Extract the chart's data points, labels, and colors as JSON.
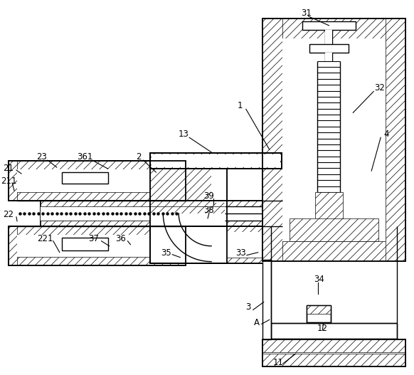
{
  "bg_color": "#ffffff",
  "line_color": "#000000",
  "figsize": [
    5.82,
    5.27
  ],
  "dpi": 100,
  "labels": [
    [
      "31",
      430,
      18
    ],
    [
      "1",
      337,
      148
    ],
    [
      "4",
      543,
      188
    ],
    [
      "32",
      533,
      123
    ],
    [
      "13",
      257,
      188
    ],
    [
      "2",
      193,
      220
    ],
    [
      "23",
      57,
      220
    ],
    [
      "361",
      118,
      220
    ],
    [
      "21",
      10,
      236
    ],
    [
      "211",
      10,
      254
    ],
    [
      "22",
      10,
      302
    ],
    [
      "221",
      62,
      336
    ],
    [
      "37",
      130,
      336
    ],
    [
      "36",
      168,
      336
    ],
    [
      "35",
      232,
      356
    ],
    [
      "38",
      293,
      296
    ],
    [
      "39",
      293,
      276
    ],
    [
      "33",
      338,
      356
    ],
    [
      "3",
      348,
      432
    ],
    [
      "A",
      360,
      454
    ],
    [
      "34",
      448,
      393
    ],
    [
      "12",
      453,
      462
    ],
    [
      "11",
      390,
      510
    ]
  ],
  "label_lines": [
    [
      "31",
      430,
      22,
      462,
      35
    ],
    [
      "1",
      342,
      153,
      378,
      210
    ],
    [
      "4",
      538,
      193,
      522,
      240
    ],
    [
      "32",
      528,
      128,
      496,
      158
    ],
    [
      "13",
      262,
      193,
      298,
      215
    ],
    [
      "2",
      197,
      225,
      218,
      242
    ],
    [
      "23",
      62,
      225,
      78,
      235
    ],
    [
      "361",
      125,
      225,
      150,
      237
    ],
    [
      "21",
      18,
      239,
      28,
      244
    ],
    [
      "211",
      18,
      257,
      18,
      268
    ],
    [
      "22",
      18,
      305,
      22,
      311
    ],
    [
      "221",
      70,
      339,
      82,
      355
    ],
    [
      "37",
      138,
      339,
      152,
      346
    ],
    [
      "36",
      175,
      339,
      182,
      344
    ],
    [
      "35",
      238,
      358,
      252,
      362
    ],
    [
      "38",
      296,
      299,
      291,
      307
    ],
    [
      "39",
      296,
      279,
      299,
      288
    ],
    [
      "33",
      343,
      359,
      362,
      355
    ],
    [
      "3",
      352,
      436,
      370,
      425
    ],
    [
      "A",
      364,
      456,
      378,
      450
    ],
    [
      "34",
      450,
      397,
      447,
      414
    ],
    [
      "12",
      456,
      464,
      454,
      455
    ],
    [
      "11",
      394,
      512,
      415,
      498
    ]
  ]
}
